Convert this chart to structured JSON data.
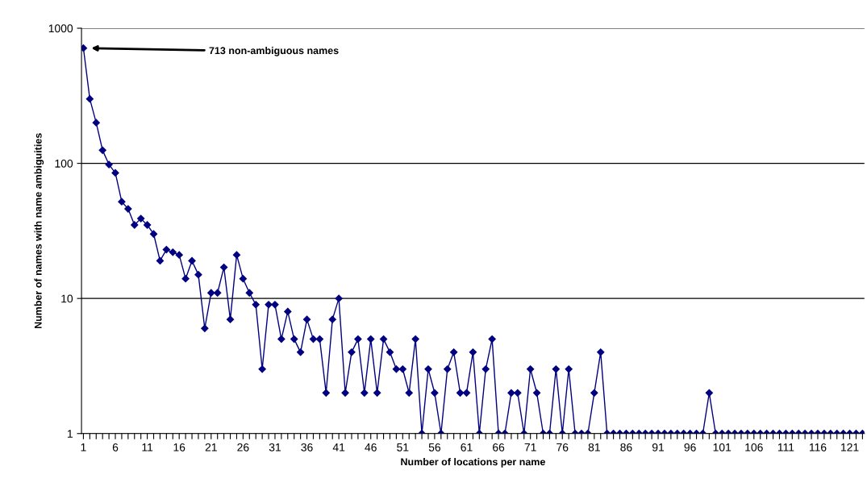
{
  "chart_data": {
    "type": "line",
    "xlabel": "Number of locations per name",
    "ylabel": "Number of names with name ambiguities",
    "categories": [
      "1",
      null,
      null,
      null,
      null,
      "6",
      null,
      null,
      null,
      null,
      "11",
      null,
      null,
      null,
      null,
      "16",
      null,
      null,
      null,
      null,
      "21",
      null,
      null,
      null,
      null,
      "26",
      null,
      null,
      null,
      null,
      "31",
      null,
      null,
      null,
      null,
      "36",
      null,
      null,
      null,
      null,
      "41",
      null,
      null,
      null,
      null,
      "46",
      null,
      null,
      null,
      null,
      "51",
      null,
      null,
      null,
      null,
      "56",
      null,
      null,
      null,
      null,
      "61",
      null,
      null,
      null,
      null,
      "66",
      null,
      null,
      null,
      null,
      "71",
      null,
      null,
      null,
      null,
      "76",
      null,
      null,
      null,
      null,
      "81",
      null,
      null,
      null,
      null,
      "86",
      null,
      null,
      null,
      null,
      "91",
      null,
      null,
      null,
      null,
      "96",
      null,
      null,
      null,
      null,
      "101",
      null,
      null,
      null,
      null,
      "106",
      null,
      null,
      null,
      null,
      "111",
      null,
      null,
      null,
      null,
      "116",
      null,
      null,
      null,
      null,
      "121",
      null,
      null
    ],
    "series": [
      {
        "color": "#000080",
        "values": [
          713,
          300,
          200,
          125,
          98,
          85,
          52,
          46,
          35,
          39,
          35,
          30,
          19,
          23,
          22,
          21,
          14,
          19,
          15,
          6,
          11,
          11,
          17,
          7,
          21,
          14,
          11,
          9,
          3,
          9,
          9,
          5,
          8,
          5,
          4,
          7,
          5,
          5,
          2,
          7,
          10,
          2,
          4,
          5,
          2,
          5,
          2,
          5,
          4,
          3,
          3,
          2,
          5,
          1,
          3,
          2,
          1,
          3,
          4,
          2,
          2,
          4,
          1,
          3,
          5,
          1,
          1,
          2,
          2,
          1,
          3,
          2,
          1,
          1,
          3,
          1,
          3,
          1,
          1,
          1,
          2,
          4,
          1,
          1,
          1,
          1,
          1,
          1,
          1,
          1,
          1,
          1,
          1,
          1,
          1,
          1,
          1,
          1,
          2,
          1,
          1,
          1,
          1,
          1,
          1,
          1,
          1,
          1,
          1,
          1,
          1,
          1,
          1,
          1,
          1,
          1,
          1,
          1,
          1,
          1,
          1,
          1,
          1
        ]
      }
    ],
    "log": true,
    "ylim": [
      1,
      1000
    ],
    "yticks": [
      1,
      10,
      100,
      1000
    ],
    "grid": "y",
    "marker": "diamond",
    "line_style": "solid",
    "legend": false,
    "annotations": [
      "713 non-ambiguous names"
    ]
  }
}
